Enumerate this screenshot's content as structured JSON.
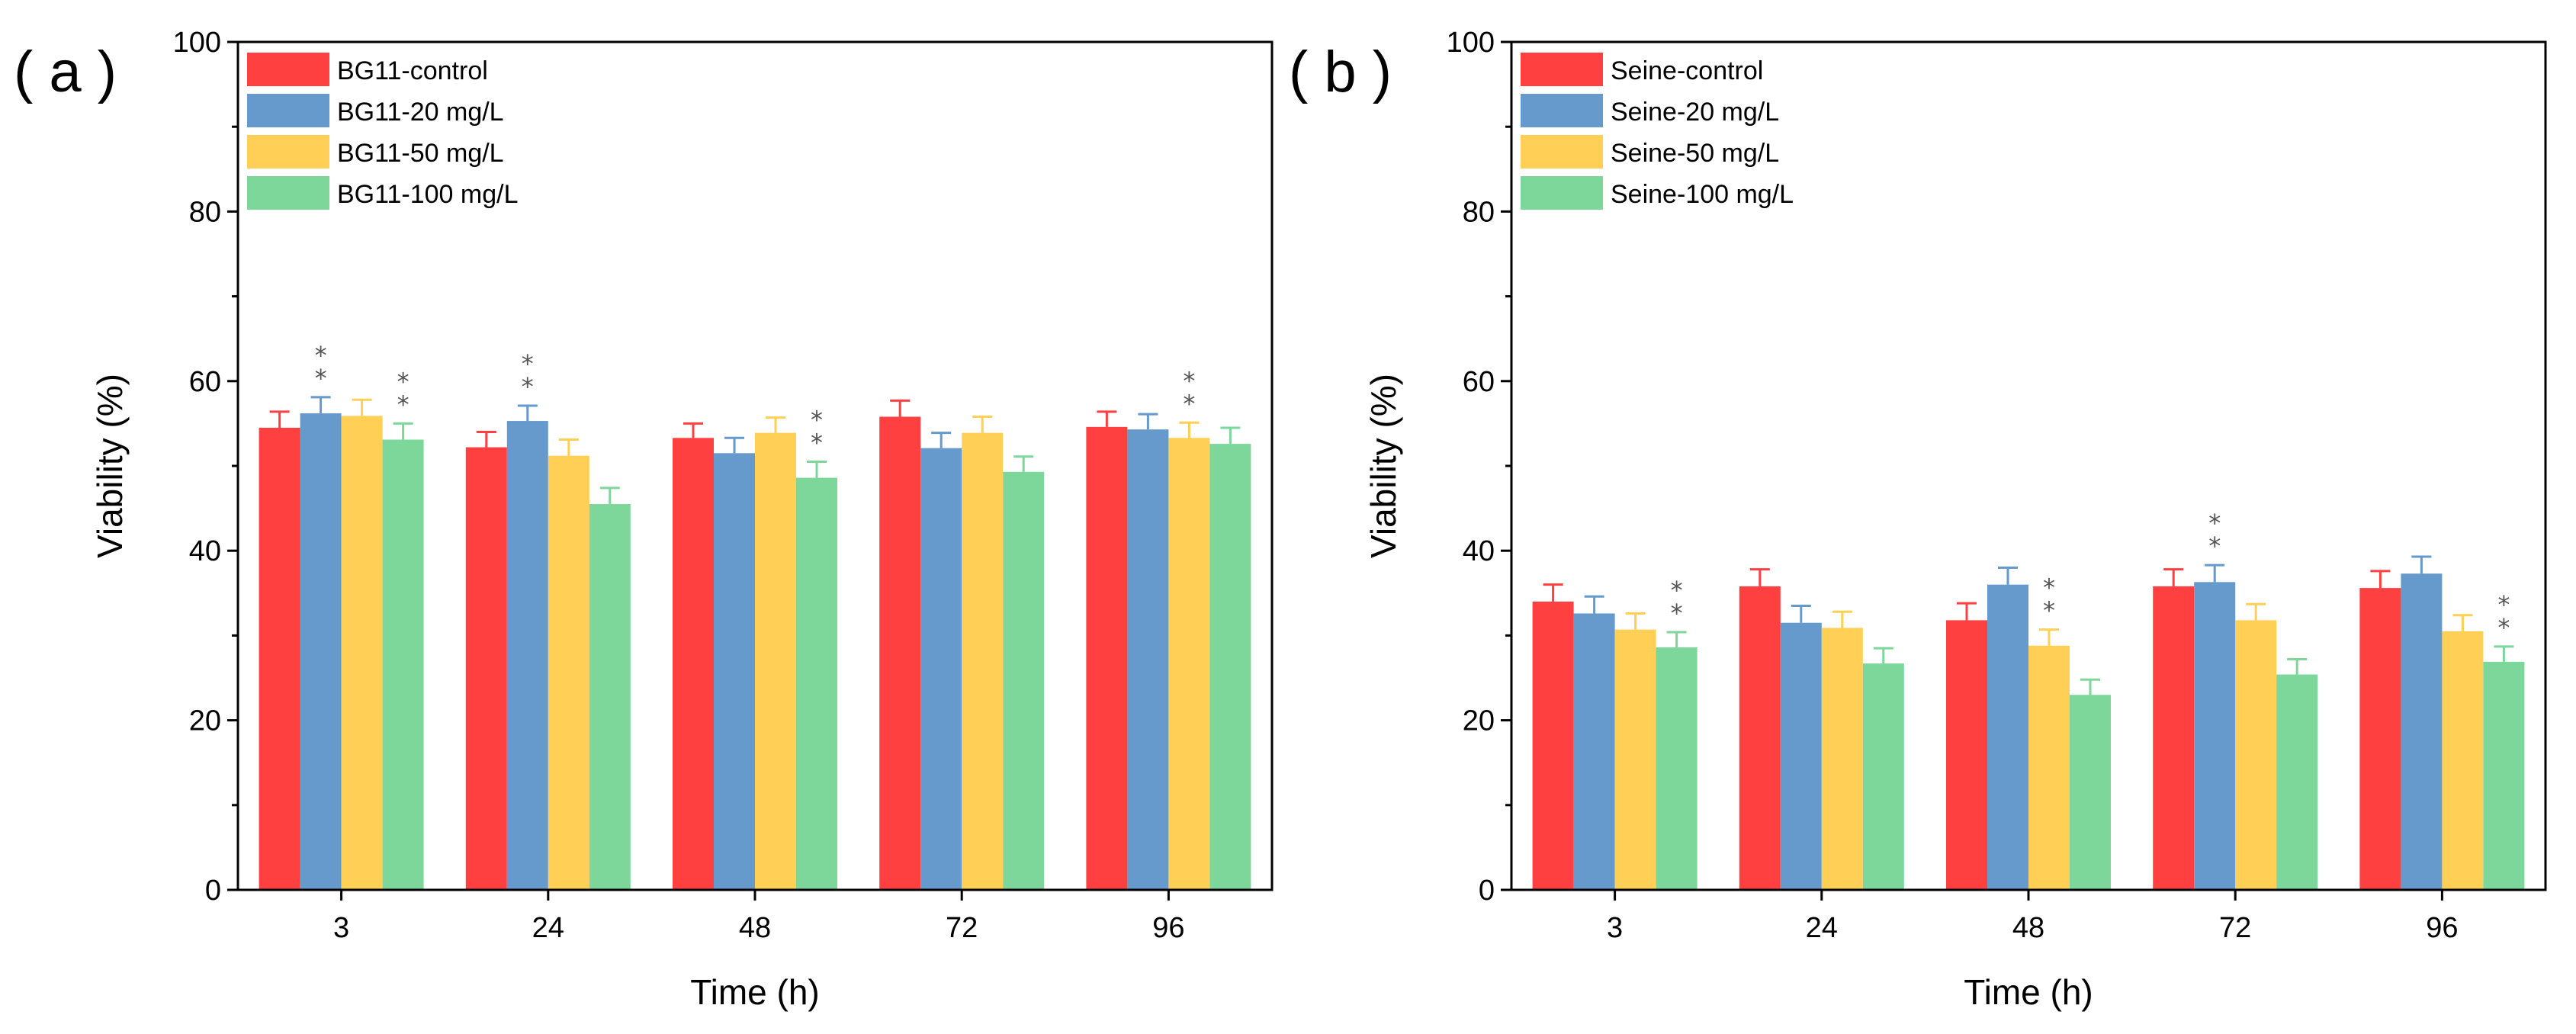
{
  "figure": {
    "colors": {
      "control": "#ff4040",
      "c20": "#6699cc",
      "c50": "#ffd055",
      "c100": "#7dd79b"
    }
  },
  "chart_data": [
    {
      "type": "bar",
      "panel_label": "( a )",
      "xlabel": "Time (h)",
      "ylabel": "Viability (%)",
      "ylim": [
        0,
        100
      ],
      "yticks": [
        0,
        20,
        40,
        60,
        80,
        100
      ],
      "categories": [
        "3",
        "24",
        "48",
        "72",
        "96"
      ],
      "legend_position": "top-left",
      "series": [
        {
          "name": "BG11-control",
          "color": "#ff4040",
          "values": [
            54.5,
            52.2,
            53.3,
            55.8,
            54.6
          ],
          "errors": [
            1.9,
            1.8,
            1.7,
            1.9,
            1.8
          ],
          "significance": [
            "",
            "",
            "",
            "",
            ""
          ]
        },
        {
          "name": "BG11-20 mg/L",
          "color": "#6699cc",
          "values": [
            56.2,
            55.3,
            51.5,
            52.1,
            54.3
          ],
          "errors": [
            1.9,
            1.8,
            1.8,
            1.8,
            1.8
          ],
          "significance": [
            "**",
            "**",
            "",
            "",
            ""
          ]
        },
        {
          "name": "BG11-50 mg/L",
          "color": "#ffd055",
          "values": [
            55.9,
            51.2,
            53.9,
            53.9,
            53.3
          ],
          "errors": [
            1.9,
            1.9,
            1.8,
            1.9,
            1.8
          ],
          "significance": [
            "",
            "",
            "",
            "",
            "**"
          ]
        },
        {
          "name": "BG11-100 mg/L",
          "color": "#7dd79b",
          "values": [
            53.1,
            45.5,
            48.6,
            49.3,
            52.6
          ],
          "errors": [
            1.9,
            1.9,
            1.9,
            1.8,
            1.9
          ],
          "significance": [
            "**",
            "",
            "**",
            "",
            ""
          ]
        }
      ]
    },
    {
      "type": "bar",
      "panel_label": "( b )",
      "xlabel": "Time (h)",
      "ylabel": "Viability (%)",
      "ylim": [
        0,
        100
      ],
      "yticks": [
        0,
        20,
        40,
        60,
        80,
        100
      ],
      "categories": [
        "3",
        "24",
        "48",
        "72",
        "96"
      ],
      "legend_position": "top-left",
      "series": [
        {
          "name": "Seine-control",
          "color": "#ff4040",
          "values": [
            34.0,
            35.8,
            31.8,
            35.8,
            35.6
          ],
          "errors": [
            2.0,
            2.0,
            2.0,
            2.0,
            2.0
          ],
          "significance": [
            "",
            "",
            "",
            "",
            ""
          ]
        },
        {
          "name": "Seine-20 mg/L",
          "color": "#6699cc",
          "values": [
            32.6,
            31.5,
            36.0,
            36.3,
            37.3
          ],
          "errors": [
            2.0,
            2.0,
            2.0,
            2.0,
            2.0
          ],
          "significance": [
            "",
            "",
            "",
            "**",
            ""
          ]
        },
        {
          "name": "Seine-50 mg/L",
          "color": "#ffd055",
          "values": [
            30.7,
            30.9,
            28.8,
            31.8,
            30.5
          ],
          "errors": [
            1.9,
            1.9,
            1.9,
            1.9,
            1.9
          ],
          "significance": [
            "",
            "",
            "**",
            "",
            ""
          ]
        },
        {
          "name": "Seine-100 mg/L",
          "color": "#7dd79b",
          "values": [
            28.6,
            26.7,
            23.0,
            25.4,
            26.9
          ],
          "errors": [
            1.8,
            1.8,
            1.8,
            1.8,
            1.8
          ],
          "significance": [
            "**",
            "",
            "",
            "",
            "**"
          ]
        }
      ]
    }
  ]
}
